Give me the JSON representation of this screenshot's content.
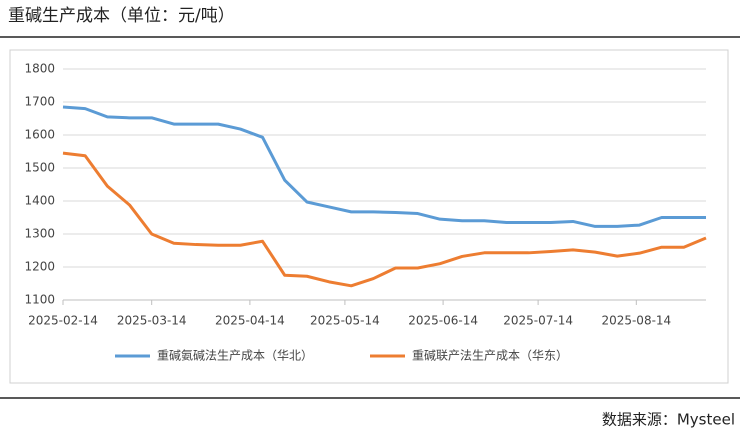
{
  "chart_data": {
    "type": "line",
    "title": "重碱生产成本（单位：元/吨）",
    "source": "数据来源：Mysteel",
    "x": [
      "2025-02-14",
      "2025-02-21",
      "2025-02-28",
      "2025-03-07",
      "2025-03-14",
      "2025-03-21",
      "2025-03-28",
      "2025-04-04",
      "2025-04-11",
      "2025-04-18",
      "2025-04-25",
      "2025-05-02",
      "2025-05-09",
      "2025-05-16",
      "2025-05-23",
      "2025-05-30",
      "2025-06-06",
      "2025-06-13",
      "2025-06-20",
      "2025-06-27",
      "2025-07-04",
      "2025-07-11",
      "2025-07-18",
      "2025-07-25",
      "2025-08-01",
      "2025-08-08",
      "2025-08-15",
      "2025-08-22",
      "2025-08-29",
      "2025-09-05"
    ],
    "series": [
      {
        "name": "重碱氨碱法生产成本（华北）",
        "color": "#5b9bd5",
        "values": [
          1685,
          1680,
          1655,
          1652,
          1652,
          1633,
          1633,
          1633,
          1618,
          1593,
          1463,
          1397,
          1382,
          1367,
          1367,
          1365,
          1362,
          1345,
          1340,
          1340,
          1335,
          1335,
          1335,
          1338,
          1323,
          1323,
          1327,
          1350,
          1350,
          1350
        ]
      },
      {
        "name": "重碱联产法生产成本（华东）",
        "color": "#ed7d31",
        "values": [
          1545,
          1537,
          1445,
          1388,
          1300,
          1272,
          1268,
          1266,
          1266,
          1278,
          1175,
          1172,
          1155,
          1143,
          1165,
          1197,
          1197,
          1210,
          1232,
          1243,
          1243,
          1243,
          1247,
          1252,
          1245,
          1233,
          1242,
          1260,
          1260,
          1288
        ]
      }
    ],
    "xlim": [
      "2025-02-14",
      "2025-09-05"
    ],
    "xticks": [
      "2025-02-14",
      "2025-03-14",
      "2025-04-14",
      "2025-05-14",
      "2025-06-14",
      "2025-07-14",
      "2025-08-14"
    ],
    "ylim": [
      1100,
      1800
    ],
    "yticks": [
      1100,
      1200,
      1300,
      1400,
      1500,
      1600,
      1700,
      1800
    ],
    "grid": true,
    "legend": "bottom"
  }
}
